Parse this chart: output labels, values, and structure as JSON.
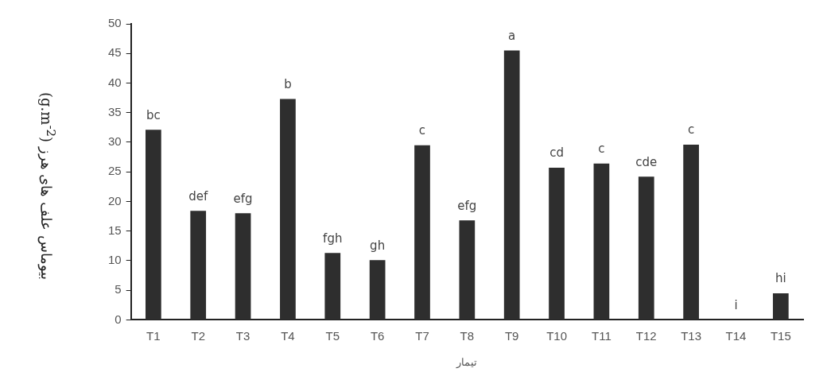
{
  "chart_data": {
    "type": "bar",
    "xlabel": "تیمار",
    "ylabel": "بیوماس علف های هرز (g.m$^{-2}$)",
    "categories": [
      "T1",
      "T2",
      "T3",
      "T4",
      "T5",
      "T6",
      "T7",
      "T8",
      "T9",
      "T10",
      "T11",
      "T12",
      "T13",
      "T14",
      "T15"
    ],
    "values": [
      32.1,
      18.4,
      18.0,
      37.3,
      11.3,
      10.1,
      29.5,
      16.8,
      45.5,
      25.7,
      26.4,
      24.2,
      29.6,
      0,
      4.5
    ],
    "value_labels": [
      "bc",
      "def",
      "efg",
      "b",
      "fgh",
      "gh",
      "c",
      "efg",
      "a",
      "cd",
      "c",
      "cde",
      "c",
      "i",
      "hi"
    ],
    "color": "#2e2e2e",
    "ylim": [
      0,
      50
    ],
    "yticks": [
      0,
      5,
      10,
      15,
      20,
      25,
      30,
      35,
      40,
      45,
      50
    ],
    "grid": false,
    "legend": false
  }
}
